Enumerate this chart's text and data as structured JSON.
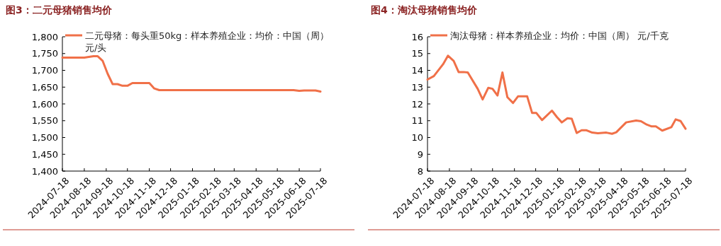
{
  "chart_data": [
    {
      "type": "line",
      "title": "图3：二元母猪销售均价",
      "series": [
        {
          "name": "二元母猪：每头重50kg：样本养殖企业：均价：中国（周）元/头",
          "color": "#f07048",
          "x": [
            "2024-07-18",
            "2024-08-18",
            "2024-08-31",
            "2024-09-06",
            "2024-09-13",
            "2024-09-20",
            "2024-09-27",
            "2024-10-04",
            "2024-10-11",
            "2024-10-18",
            "2024-10-25",
            "2024-11-18",
            "2024-11-25",
            "2024-12-02",
            "2025-06-10",
            "2025-06-18",
            "2025-06-25",
            "2025-07-11",
            "2025-07-18"
          ],
          "values": [
            1738,
            1738,
            1742,
            1742,
            1728,
            1690,
            1659,
            1659,
            1654,
            1654,
            1662,
            1662,
            1646,
            1641,
            1641,
            1639,
            1640,
            1640,
            1637
          ]
        }
      ],
      "xlim": [
        "2024-07-18",
        "2025-07-18"
      ],
      "xticks": [
        "2024-07-18",
        "2024-08-18",
        "2024-09-18",
        "2024-10-18",
        "2024-11-18",
        "2024-12-18",
        "2025-01-18",
        "2025-02-18",
        "2025-03-18",
        "2025-04-18",
        "2025-05-18",
        "2025-06-18",
        "2025-07-18"
      ],
      "ylim": [
        1400,
        1800
      ],
      "yticks": [
        {
          "value": 1400,
          "label": "1,400"
        },
        {
          "value": 1450,
          "label": "1,450"
        },
        {
          "value": 1500,
          "label": "1,500"
        },
        {
          "value": 1550,
          "label": "1,550"
        },
        {
          "value": 1600,
          "label": "1,600"
        },
        {
          "value": 1650,
          "label": "1,650"
        },
        {
          "value": 1700,
          "label": "1,700"
        },
        {
          "value": 1750,
          "label": "1,750"
        },
        {
          "value": 1800,
          "label": "1,800"
        }
      ],
      "legend": "top left",
      "grid": false
    },
    {
      "type": "line",
      "title": "图4：淘汰母猪销售均价",
      "series": [
        {
          "name": "淘汰母猪：样本养殖企业：均价：中国（周） 元/千克",
          "color": "#f07048",
          "x": [
            "2024-07-18",
            "2024-07-27",
            "2024-08-09",
            "2024-08-16",
            "2024-08-24",
            "2024-08-31",
            "2024-09-07",
            "2024-09-13",
            "2024-09-27",
            "2024-10-04",
            "2024-10-12",
            "2024-10-18",
            "2024-10-25",
            "2024-11-01",
            "2024-11-08",
            "2024-11-16",
            "2024-11-23",
            "2024-12-06",
            "2024-12-13",
            "2024-12-19",
            "2024-12-27",
            "2025-01-10",
            "2025-01-17",
            "2025-01-24",
            "2025-02-01",
            "2025-02-07",
            "2025-02-14",
            "2025-02-21",
            "2025-02-28",
            "2025-03-08",
            "2025-03-16",
            "2025-03-28",
            "2025-04-05",
            "2025-04-11",
            "2025-04-25",
            "2025-05-09",
            "2025-05-16",
            "2025-05-24",
            "2025-05-31",
            "2025-06-06",
            "2025-06-15",
            "2025-06-28",
            "2025-07-04",
            "2025-07-11",
            "2025-07-18"
          ],
          "values": [
            13.45,
            13.66,
            14.36,
            14.87,
            14.56,
            13.9,
            13.9,
            13.87,
            12.9,
            12.27,
            12.96,
            12.9,
            12.5,
            13.87,
            12.4,
            12.06,
            12.45,
            12.45,
            11.46,
            11.46,
            11.04,
            11.6,
            11.22,
            10.9,
            11.15,
            11.12,
            10.27,
            10.43,
            10.43,
            10.29,
            10.25,
            10.29,
            10.22,
            10.31,
            10.9,
            11.01,
            10.97,
            10.77,
            10.66,
            10.66,
            10.41,
            10.62,
            11.08,
            10.98,
            10.52
          ]
        }
      ],
      "xlim": [
        "2024-07-18",
        "2025-07-18"
      ],
      "xticks": [
        "2024-07-18",
        "2024-08-18",
        "2024-09-18",
        "2024-10-18",
        "2024-11-18",
        "2024-12-18",
        "2025-01-18",
        "2025-02-18",
        "2025-03-18",
        "2025-04-18",
        "2025-05-18",
        "2025-06-18",
        "2025-07-18"
      ],
      "ylim": [
        8,
        16
      ],
      "yticks": [
        8,
        9,
        10,
        11,
        12,
        13,
        14,
        15,
        16
      ],
      "legend": "top left",
      "grid": false
    }
  ]
}
